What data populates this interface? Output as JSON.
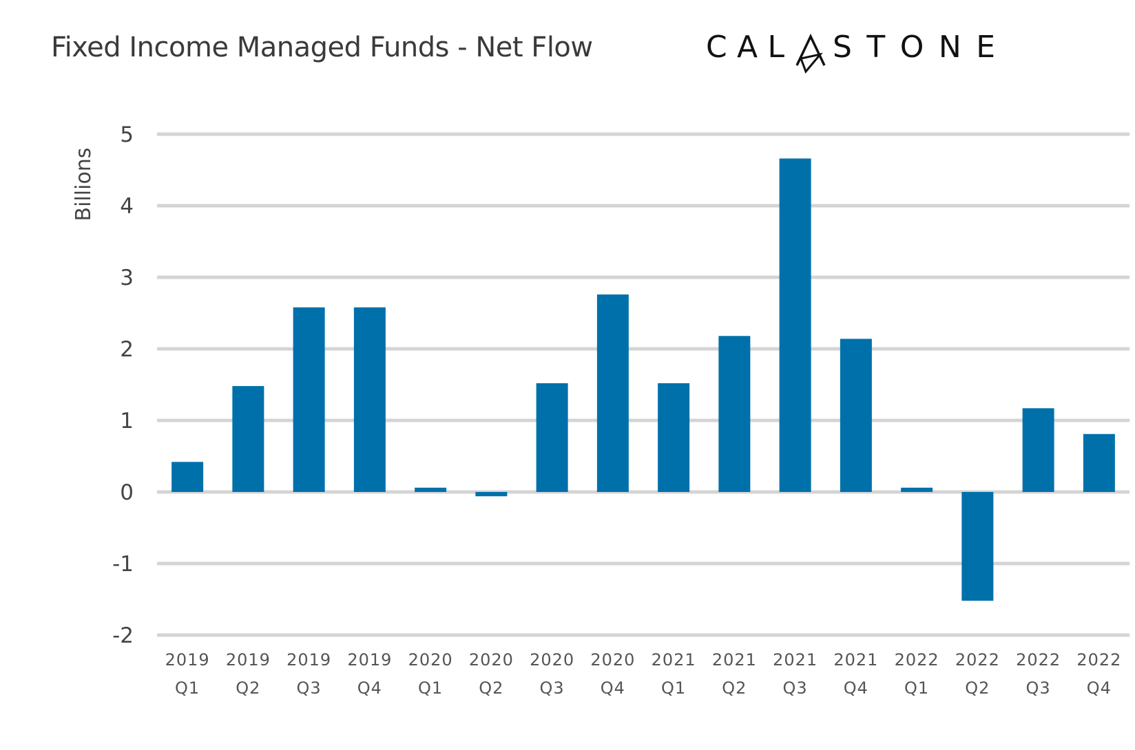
{
  "chart_data": {
    "type": "bar",
    "title": "Fixed Income Managed Funds - Net Flow",
    "xlabel": "",
    "ylabel": "Billions",
    "ylim": [
      -2,
      5
    ],
    "yticks": [
      5,
      4,
      3,
      2,
      1,
      0,
      -1,
      -2
    ],
    "grid": true,
    "categories": [
      [
        "2019",
        "Q1"
      ],
      [
        "2019",
        "Q2"
      ],
      [
        "2019",
        "Q3"
      ],
      [
        "2019",
        "Q4"
      ],
      [
        "2020",
        "Q1"
      ],
      [
        "2020",
        "Q2"
      ],
      [
        "2020",
        "Q3"
      ],
      [
        "2020",
        "Q4"
      ],
      [
        "2021",
        "Q1"
      ],
      [
        "2021",
        "Q2"
      ],
      [
        "2021",
        "Q3"
      ],
      [
        "2021",
        "Q4"
      ],
      [
        "2022",
        "Q1"
      ],
      [
        "2022",
        "Q2"
      ],
      [
        "2022",
        "Q3"
      ],
      [
        "2022",
        "Q4"
      ]
    ],
    "values": [
      0.42,
      1.48,
      2.58,
      2.58,
      0.06,
      -0.06,
      1.52,
      2.76,
      1.52,
      2.18,
      4.66,
      2.14,
      0.06,
      -1.52,
      1.17,
      0.81
    ],
    "bar_color": "#0070ab"
  },
  "brand": {
    "left_text": "CAL",
    "right_text": "STONE",
    "color": "#111111"
  }
}
